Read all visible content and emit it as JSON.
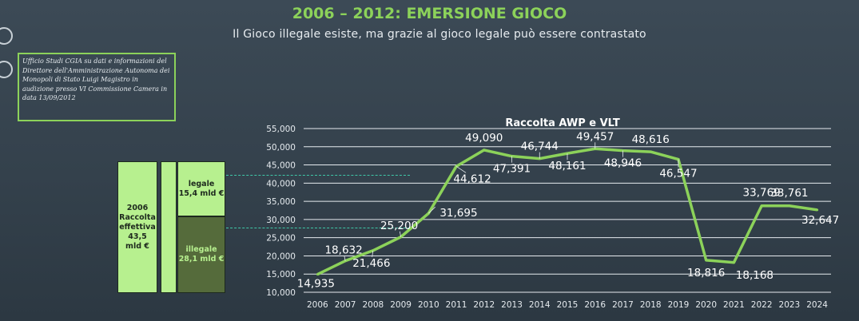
{
  "header": {
    "title": "2006 – 2012: EMERSIONE GIOCO",
    "subtitle": "Il Gioco illegale esiste, ma grazie al gioco legale può essere contrastato"
  },
  "source_note": "Ufficio Studi CGIA su dati e informazioni del Direttore dell'Amministrazione Autonoma dei Monopoli di Stato Luigi Magistro in audizione presso VI Commissione Camera in data 13/09/2012",
  "side_boxes": {
    "year_box": "2006\nRaccolta\neffettiva\n43,5\nmld €",
    "legale": "legale\n15,4 mld €",
    "illegale": "illegale\n28,1 mld €",
    "legale_share": 0.354,
    "illegale_share": 0.646
  },
  "colors": {
    "accent": "#8cd25a",
    "line": "#8cd25a",
    "box_light": "#b7f08f",
    "box_dark": "#556b3b",
    "dashed": "#3fc7a8"
  },
  "chart_data": {
    "type": "line",
    "title": "Raccolta AWP e VLT",
    "x": [
      "2006",
      "2007",
      "2008",
      "2009",
      "2010",
      "2011",
      "2012",
      "2013",
      "2014",
      "2015",
      "2016",
      "2017",
      "2018",
      "2019",
      "2020",
      "2021",
      "2022",
      "2023",
      "2024"
    ],
    "series": [
      {
        "values": [
          14935,
          18632,
          21466,
          25200,
          31695,
          44612,
          49090,
          47391,
          46744,
          48161,
          49457,
          48946,
          48616,
          46547,
          18816,
          18168,
          33769,
          33761,
          32647
        ]
      }
    ],
    "labels": [
      "14,935",
      "18,632",
      "21,466",
      "25,200",
      "31,695",
      "44,612",
      "49,090",
      "47,391",
      "46,744",
      "48,161",
      "49,457",
      "48,946",
      "48,616",
      "46,547",
      "18,816",
      "18,168",
      "33,769",
      "33,761",
      "32,647"
    ],
    "yticks": [
      10000,
      15000,
      20000,
      25000,
      30000,
      35000,
      40000,
      45000,
      50000,
      55000
    ],
    "ytick_labels": [
      "10,000",
      "15,000",
      "20,000",
      "25,000",
      "30,000",
      "35,000",
      "40,000",
      "45,000",
      "50,000",
      "55,000"
    ],
    "ylim": [
      10000,
      55000
    ],
    "grid": true
  }
}
